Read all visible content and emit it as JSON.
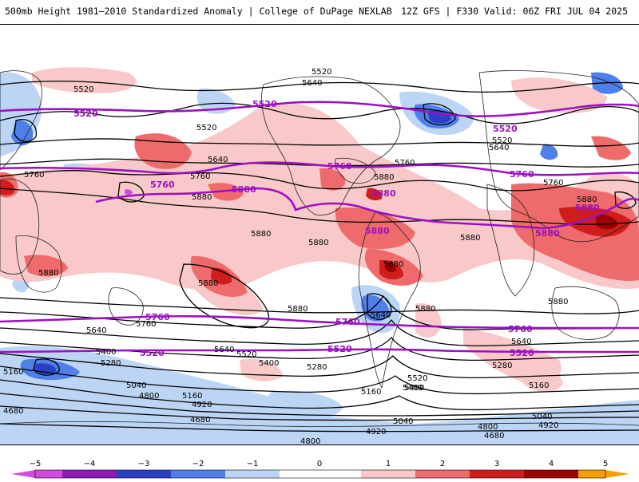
{
  "header": {
    "left_title": "500mb Height 1981–2010 Standardized Anomaly | College of DuPage NEXLAB",
    "right_title": "12Z GFS | F330 Valid: 06Z FRI JUL 04 2025"
  },
  "colors": {
    "neg5": "#d24be0",
    "neg4": "#8f1ab8",
    "neg3": "#2a41c7",
    "neg2": "#4f7fe8",
    "neg1": "#bcd5f5",
    "zero": "#ffffff",
    "pos1": "#f9c9c9",
    "pos2": "#ef6a6a",
    "pos3": "#cf1d1d",
    "pos4": "#9c0000",
    "pos5": "#f5a000",
    "highlight_contour": "#9b11c4",
    "contour": "#000000"
  },
  "colorbar": {
    "ticks": [
      "−5",
      "−4",
      "−3",
      "−2",
      "−1",
      "0",
      "1",
      "2",
      "3",
      "4",
      "5"
    ]
  },
  "contour_labels": {
    "highlight": [
      "5520",
      "5520",
      "5520",
      "5520",
      "5520",
      "5520",
      "5760",
      "5760",
      "5760",
      "5760",
      "5760",
      "5760",
      "5880",
      "5880",
      "5880",
      "5880",
      "5880"
    ],
    "black": [
      "5520",
      "5520",
      "5520",
      "5520",
      "5640",
      "5640",
      "5640",
      "5760",
      "5760",
      "5760",
      "5760",
      "5880",
      "5880",
      "5880",
      "5880",
      "5880",
      "5880",
      "5880",
      "5880",
      "5880",
      "5880",
      "5880",
      "5880",
      "5760",
      "5640",
      "5640",
      "5640",
      "5640",
      "5400",
      "5400",
      "5400",
      "5280",
      "5280",
      "5280",
      "5160",
      "5160",
      "5160",
      "5160",
      "5040",
      "5040",
      "5040",
      "4920",
      "4920",
      "4920",
      "4800",
      "4800",
      "4800",
      "4680",
      "4680",
      "4680",
      "4680",
      "5520",
      "5520",
      "5400"
    ]
  }
}
